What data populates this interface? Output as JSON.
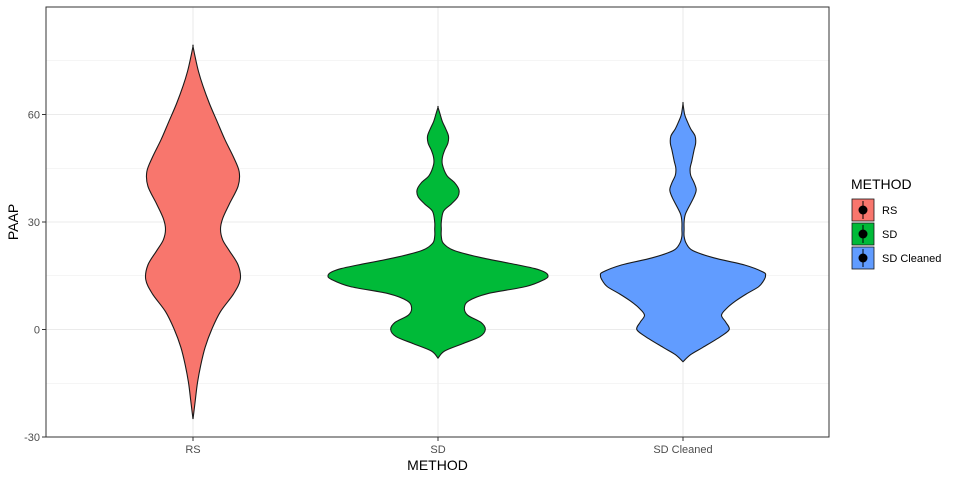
{
  "chart_data": {
    "type": "violin",
    "xlabel": "METHOD",
    "ylabel": "PAAP",
    "ylim": [
      -30,
      90
    ],
    "yticks": [
      -30,
      0,
      30,
      60
    ],
    "grid": true,
    "legend": {
      "title": "METHOD",
      "position": "right",
      "entries": [
        "RS",
        "SD",
        "SD Cleaned"
      ]
    },
    "categories": [
      "RS",
      "SD",
      "SD Cleaned"
    ],
    "series": [
      {
        "name": "RS",
        "color": "#F8766D",
        "min": -25,
        "max": 79,
        "profile": [
          [
            -25,
            0
          ],
          [
            -20,
            0.02
          ],
          [
            -15,
            0.04
          ],
          [
            -10,
            0.07
          ],
          [
            -5,
            0.11
          ],
          [
            0,
            0.17
          ],
          [
            5,
            0.25
          ],
          [
            10,
            0.37
          ],
          [
            14,
            0.43
          ],
          [
            18,
            0.41
          ],
          [
            22,
            0.33
          ],
          [
            25,
            0.27
          ],
          [
            28,
            0.25
          ],
          [
            31,
            0.27
          ],
          [
            35,
            0.33
          ],
          [
            40,
            0.41
          ],
          [
            44,
            0.42
          ],
          [
            48,
            0.37
          ],
          [
            53,
            0.29
          ],
          [
            58,
            0.22
          ],
          [
            63,
            0.15
          ],
          [
            68,
            0.09
          ],
          [
            72,
            0.05
          ],
          [
            76,
            0.02
          ],
          [
            79,
            0
          ]
        ]
      },
      {
        "name": "SD",
        "color": "#00BA38",
        "min": -8,
        "max": 62,
        "profile": [
          [
            -8,
            0
          ],
          [
            -6,
            0.06
          ],
          [
            -4,
            0.22
          ],
          [
            -2,
            0.38
          ],
          [
            0,
            0.43
          ],
          [
            2,
            0.39
          ],
          [
            4,
            0.27
          ],
          [
            6,
            0.24
          ],
          [
            8,
            0.28
          ],
          [
            10,
            0.45
          ],
          [
            12,
            0.8
          ],
          [
            14,
            0.97
          ],
          [
            15,
            1.0
          ],
          [
            16,
            0.97
          ],
          [
            17,
            0.88
          ],
          [
            18,
            0.73
          ],
          [
            20,
            0.4
          ],
          [
            22,
            0.15
          ],
          [
            24,
            0.05
          ],
          [
            26,
            0.03
          ],
          [
            28,
            0.03
          ],
          [
            30,
            0.03
          ],
          [
            33,
            0.05
          ],
          [
            35,
            0.12
          ],
          [
            37,
            0.18
          ],
          [
            39,
            0.19
          ],
          [
            41,
            0.15
          ],
          [
            43,
            0.08
          ],
          [
            46,
            0.04
          ],
          [
            48,
            0.04
          ],
          [
            50,
            0.06
          ],
          [
            52,
            0.09
          ],
          [
            54,
            0.095
          ],
          [
            56,
            0.07
          ],
          [
            58,
            0.04
          ],
          [
            60,
            0.02
          ],
          [
            62,
            0
          ]
        ]
      },
      {
        "name": "SD Cleaned",
        "color": "#619CFF",
        "min": -9,
        "max": 63,
        "profile": [
          [
            -9,
            0
          ],
          [
            -7,
            0.07
          ],
          [
            -5,
            0.18
          ],
          [
            -2,
            0.34
          ],
          [
            0,
            0.42
          ],
          [
            2,
            0.39
          ],
          [
            4,
            0.35
          ],
          [
            6,
            0.4
          ],
          [
            8,
            0.48
          ],
          [
            10,
            0.58
          ],
          [
            12,
            0.69
          ],
          [
            14,
            0.74
          ],
          [
            15,
            0.75
          ],
          [
            16,
            0.73
          ],
          [
            18,
            0.56
          ],
          [
            20,
            0.28
          ],
          [
            22,
            0.09
          ],
          [
            24,
            0.03
          ],
          [
            26,
            0.01
          ],
          [
            28,
            0.01
          ],
          [
            30,
            0.01
          ],
          [
            32,
            0.02
          ],
          [
            34,
            0.05
          ],
          [
            37,
            0.1
          ],
          [
            39,
            0.12
          ],
          [
            41,
            0.1
          ],
          [
            43,
            0.07
          ],
          [
            45,
            0.065
          ],
          [
            47,
            0.08
          ],
          [
            50,
            0.1
          ],
          [
            52,
            0.115
          ],
          [
            54,
            0.11
          ],
          [
            56,
            0.07
          ],
          [
            58,
            0.04
          ],
          [
            60,
            0.015
          ],
          [
            63,
            0
          ]
        ]
      }
    ]
  }
}
